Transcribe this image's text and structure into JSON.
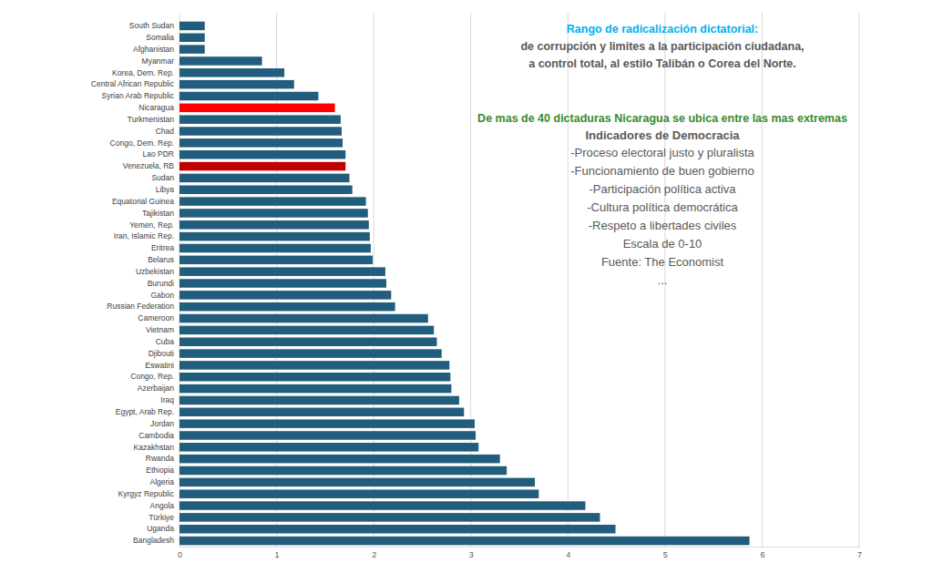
{
  "chart_data": {
    "type": "bar",
    "orientation": "horizontal",
    "grid": true,
    "categories": [
      "South Sudan",
      "Somalia",
      "Afghanistan",
      "Myanmar",
      "Korea, Dem. Rep.",
      "Central African Republic",
      "Syrian Arab Republic",
      "Nicaragua",
      "Turkmenistan",
      "Chad",
      "Congo, Dem. Rep.",
      "Lao PDR",
      "Venezuela, RB",
      "Sudan",
      "Libya",
      "Equatorial Guinea",
      "Tajikistan",
      "Yemen, Rep.",
      "Iran, Islamic Rep.",
      "Eritrea",
      "Belarus",
      "Uzbekistan",
      "Burundi",
      "Gabon",
      "Russian Federation",
      "Cameroon",
      "Vietnam",
      "Cuba",
      "Djibouti",
      "Eswatini",
      "Congo, Rep.",
      "Azerbaijan",
      "Iraq",
      "Egypt, Arab Rep.",
      "Jordan",
      "Cambodia",
      "Kazakhstan",
      "Rwanda",
      "Ethiopia",
      "Algeria",
      "Kyrgyz Republic",
      "Angola",
      "Türkiye",
      "Uganda",
      "Bangladesh"
    ],
    "values": [
      0.26,
      0.26,
      0.26,
      0.85,
      1.08,
      1.18,
      1.43,
      1.6,
      1.66,
      1.67,
      1.68,
      1.71,
      1.71,
      1.75,
      1.78,
      1.92,
      1.94,
      1.95,
      1.96,
      1.97,
      1.99,
      2.12,
      2.13,
      2.18,
      2.22,
      2.56,
      2.62,
      2.65,
      2.7,
      2.78,
      2.79,
      2.8,
      2.88,
      2.93,
      3.04,
      3.05,
      3.08,
      3.3,
      3.37,
      3.66,
      3.7,
      4.18,
      4.33,
      4.49,
      5.87
    ],
    "colors": [
      "#215d7c",
      "#215d7c",
      "#215d7c",
      "#215d7c",
      "#215d7c",
      "#215d7c",
      "#215d7c",
      "#ff0000",
      "#215d7c",
      "#215d7c",
      "#215d7c",
      "#215d7c",
      "#c00000",
      "#215d7c",
      "#215d7c",
      "#215d7c",
      "#215d7c",
      "#215d7c",
      "#215d7c",
      "#215d7c",
      "#215d7c",
      "#215d7c",
      "#215d7c",
      "#215d7c",
      "#215d7c",
      "#215d7c",
      "#215d7c",
      "#215d7c",
      "#215d7c",
      "#215d7c",
      "#215d7c",
      "#215d7c",
      "#215d7c",
      "#215d7c",
      "#215d7c",
      "#215d7c",
      "#215d7c",
      "#215d7c",
      "#215d7c",
      "#215d7c",
      "#215d7c",
      "#215d7c",
      "#215d7c",
      "#215d7c",
      "#215d7c"
    ],
    "xlim": [
      0,
      7
    ],
    "xticks": [
      0,
      1,
      2,
      3,
      4,
      5,
      6,
      7
    ],
    "annotations": [
      "Rango de radicalización dictatorial:",
      "de corrupción y limites a la participación ciudadana,",
      "a control total, al estilo Talibán o Corea del Norte.",
      "De mas de 40 dictaduras Nicaragua se ubica entre las mas extremas",
      "Indicadores de Democracia",
      "-Proceso electoral justo y pluralista",
      "-Funcionamiento de buen gobierno",
      "-Participación política activa",
      "-Cultura política democrática",
      "-Respeto a libertades civiles",
      "Escala de 0-10",
      "Fuente: The Economist",
      "..."
    ]
  }
}
